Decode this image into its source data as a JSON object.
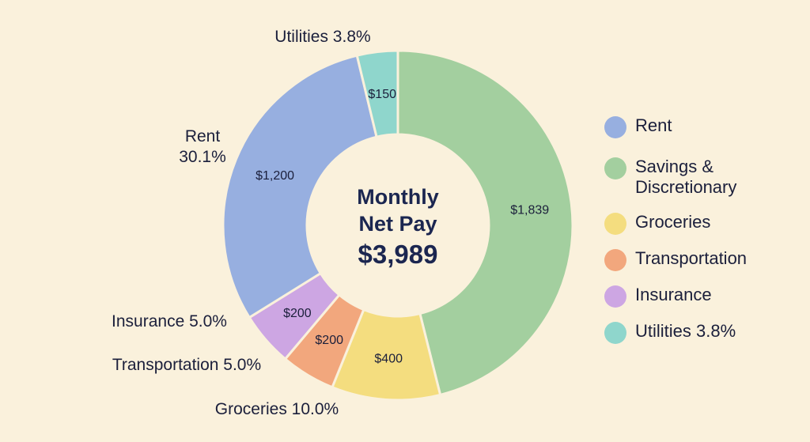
{
  "center": {
    "line1": "Monthly",
    "line2": "Net Pay",
    "total": "$3,989"
  },
  "colors": {
    "background": "#faf1dc",
    "text": "#1b1f3b",
    "slice_border": "#faf1dc"
  },
  "chart_data": {
    "type": "pie",
    "donut": true,
    "title": "",
    "legend_position": "right",
    "slices": [
      {
        "label": "Savings & Discretionary",
        "value": 1839,
        "value_label": "$1,839",
        "color": "#a3cf9f",
        "outer_label": ""
      },
      {
        "label": "Groceries",
        "value": 400,
        "value_label": "$400",
        "color": "#f4dd7f",
        "outer_label": "Groceries 10.0%"
      },
      {
        "label": "Transportation",
        "value": 200,
        "value_label": "$200",
        "color": "#f2a77d",
        "outer_label": "Transportation 5.0%"
      },
      {
        "label": "Insurance",
        "value": 200,
        "value_label": "$200",
        "color": "#cda6e3",
        "outer_label": "Insurance 5.0%"
      },
      {
        "label": "Rent",
        "value": 1200,
        "value_label": "$1,200",
        "color": "#97afe0",
        "outer_label": "Rent\n30.1%"
      },
      {
        "label": "Utilities",
        "value": 150,
        "value_label": "$150",
        "color": "#8fd6cc",
        "outer_label": "Utilities 3.8%"
      }
    ]
  },
  "legend": [
    {
      "label": "Rent",
      "color": "#97afe0"
    },
    {
      "label": "Savings &\nDiscretionary",
      "color": "#a3cf9f"
    },
    {
      "label": "Groceries",
      "color": "#f4dd7f"
    },
    {
      "label": "Transportation",
      "color": "#f2a77d"
    },
    {
      "label": "Insurance",
      "color": "#cda6e3"
    },
    {
      "label": "Utilities 3.8%",
      "color": "#8fd6cc"
    }
  ]
}
